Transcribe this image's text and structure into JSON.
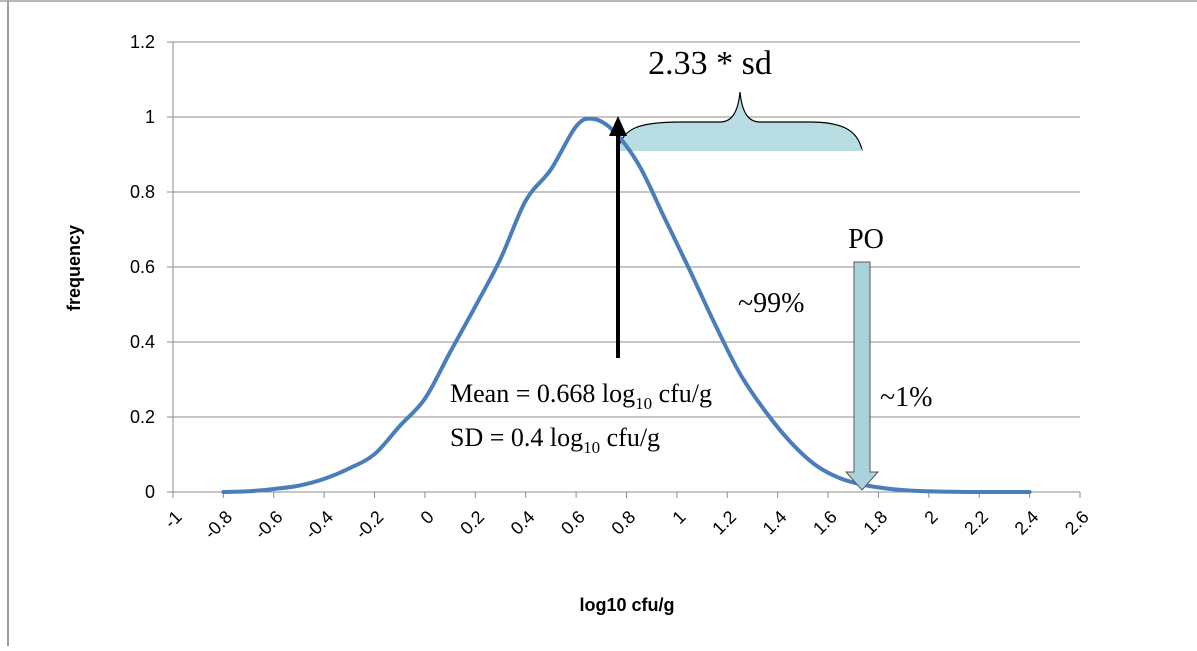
{
  "chart_data": {
    "type": "line",
    "title": "",
    "xlabel": "log10 cfu/g",
    "ylabel": "frequency",
    "xlim": [
      -1,
      2.6
    ],
    "ylim": [
      0,
      1.2
    ],
    "x_ticks": [
      "-1",
      "-0.8",
      "-0.6",
      "-0.4",
      "-0.2",
      "0",
      "0.2",
      "0.4",
      "0.6",
      "0.8",
      "1",
      "1.2",
      "1.4",
      "1.6",
      "1.8",
      "2",
      "2.2",
      "2.4",
      "2.6"
    ],
    "y_ticks": [
      "0",
      "0.2",
      "0.4",
      "0.6",
      "0.8",
      "1",
      "1.2"
    ],
    "grid": "horizontal",
    "legend": "none",
    "series": [
      {
        "color": "#4a7ebb",
        "x": [
          -0.8,
          -0.7,
          -0.6,
          -0.5,
          -0.4,
          -0.3,
          -0.2,
          -0.1,
          0.0,
          0.1,
          0.2,
          0.3,
          0.4,
          0.5,
          0.6,
          0.668,
          0.75,
          0.85,
          0.95,
          1.05,
          1.15,
          1.25,
          1.35,
          1.45,
          1.55,
          1.65,
          1.75,
          1.85,
          1.95,
          2.05,
          2.15,
          2.25,
          2.4
        ],
        "y": [
          0.0,
          0.002,
          0.008,
          0.017,
          0.035,
          0.063,
          0.101,
          0.176,
          0.249,
          0.373,
          0.495,
          0.622,
          0.777,
          0.86,
          0.975,
          0.995,
          0.962,
          0.871,
          0.732,
          0.593,
          0.449,
          0.316,
          0.216,
          0.134,
          0.072,
          0.036,
          0.018,
          0.008,
          0.003,
          0.001,
          0.0,
          0.0,
          0.0
        ]
      }
    ],
    "annotations": {
      "brace_label": "2.33 * sd",
      "po_label": "PO",
      "pct99": "~99%",
      "pct1": "~1%",
      "mean_prefix": "Mean = 0.668 log",
      "mean_sub": "10",
      "mean_suffix": " cfu/g",
      "sd_prefix": "SD = 0.4 log",
      "sd_sub": "10",
      "sd_suffix": " cfu/g",
      "mean_x": 0.668,
      "po_x": 1.6
    },
    "colors": {
      "curve": "#4a7ebb",
      "brace_fill": "#b7dde3",
      "po_arrow_fill": "#a9d3db",
      "grid": "#8c8c8c"
    }
  }
}
